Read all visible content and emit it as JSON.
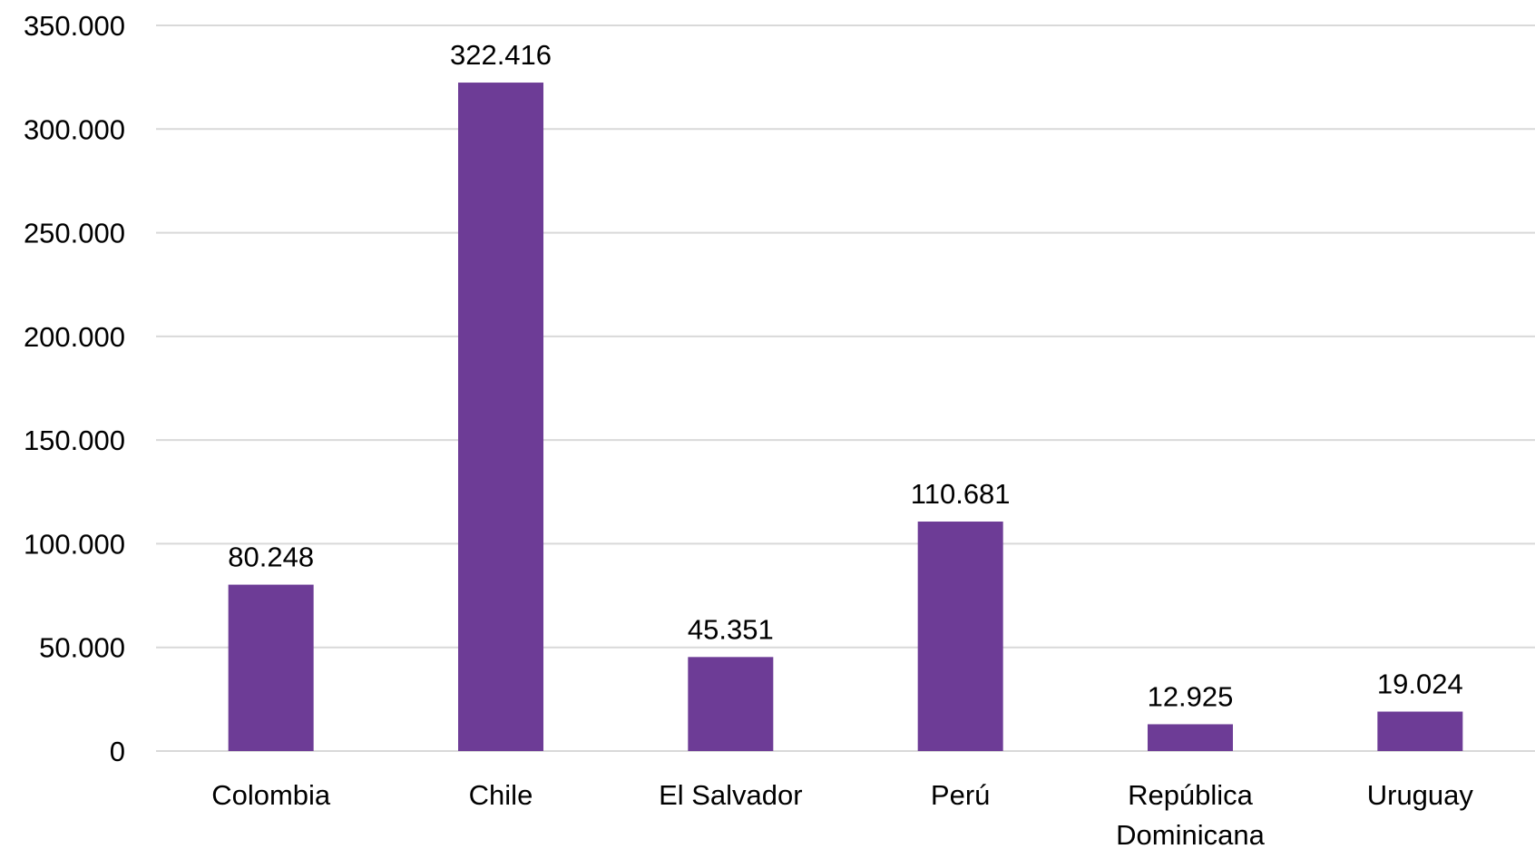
{
  "chart_data": {
    "type": "bar",
    "categories": [
      "Colombia",
      "Chile",
      "El Salvador",
      "Perú",
      "República Dominicana",
      "Uruguay"
    ],
    "category_lines": [
      [
        "Colombia"
      ],
      [
        "Chile"
      ],
      [
        "El Salvador"
      ],
      [
        "Perú"
      ],
      [
        "República",
        "Dominicana"
      ],
      [
        "Uruguay"
      ]
    ],
    "values": [
      80248,
      322416,
      45351,
      110681,
      12925,
      19024
    ],
    "data_labels": [
      "80.248",
      "322.416",
      "45.351",
      "110.681",
      "12.925",
      "19.024"
    ],
    "yticks": [
      0,
      50000,
      100000,
      150000,
      200000,
      250000,
      300000,
      350000
    ],
    "ytick_labels": [
      "0",
      "50.000",
      "100.000",
      "150.000",
      "200.000",
      "250.000",
      "300.000",
      "350.000"
    ],
    "ylim": [
      0,
      350000
    ],
    "grid": true,
    "legend": "none",
    "title": "",
    "xlabel": "",
    "ylabel": "",
    "colors": {
      "bar": "#6d3c96",
      "grid": "#d9d9d9",
      "text": "#000000"
    }
  }
}
